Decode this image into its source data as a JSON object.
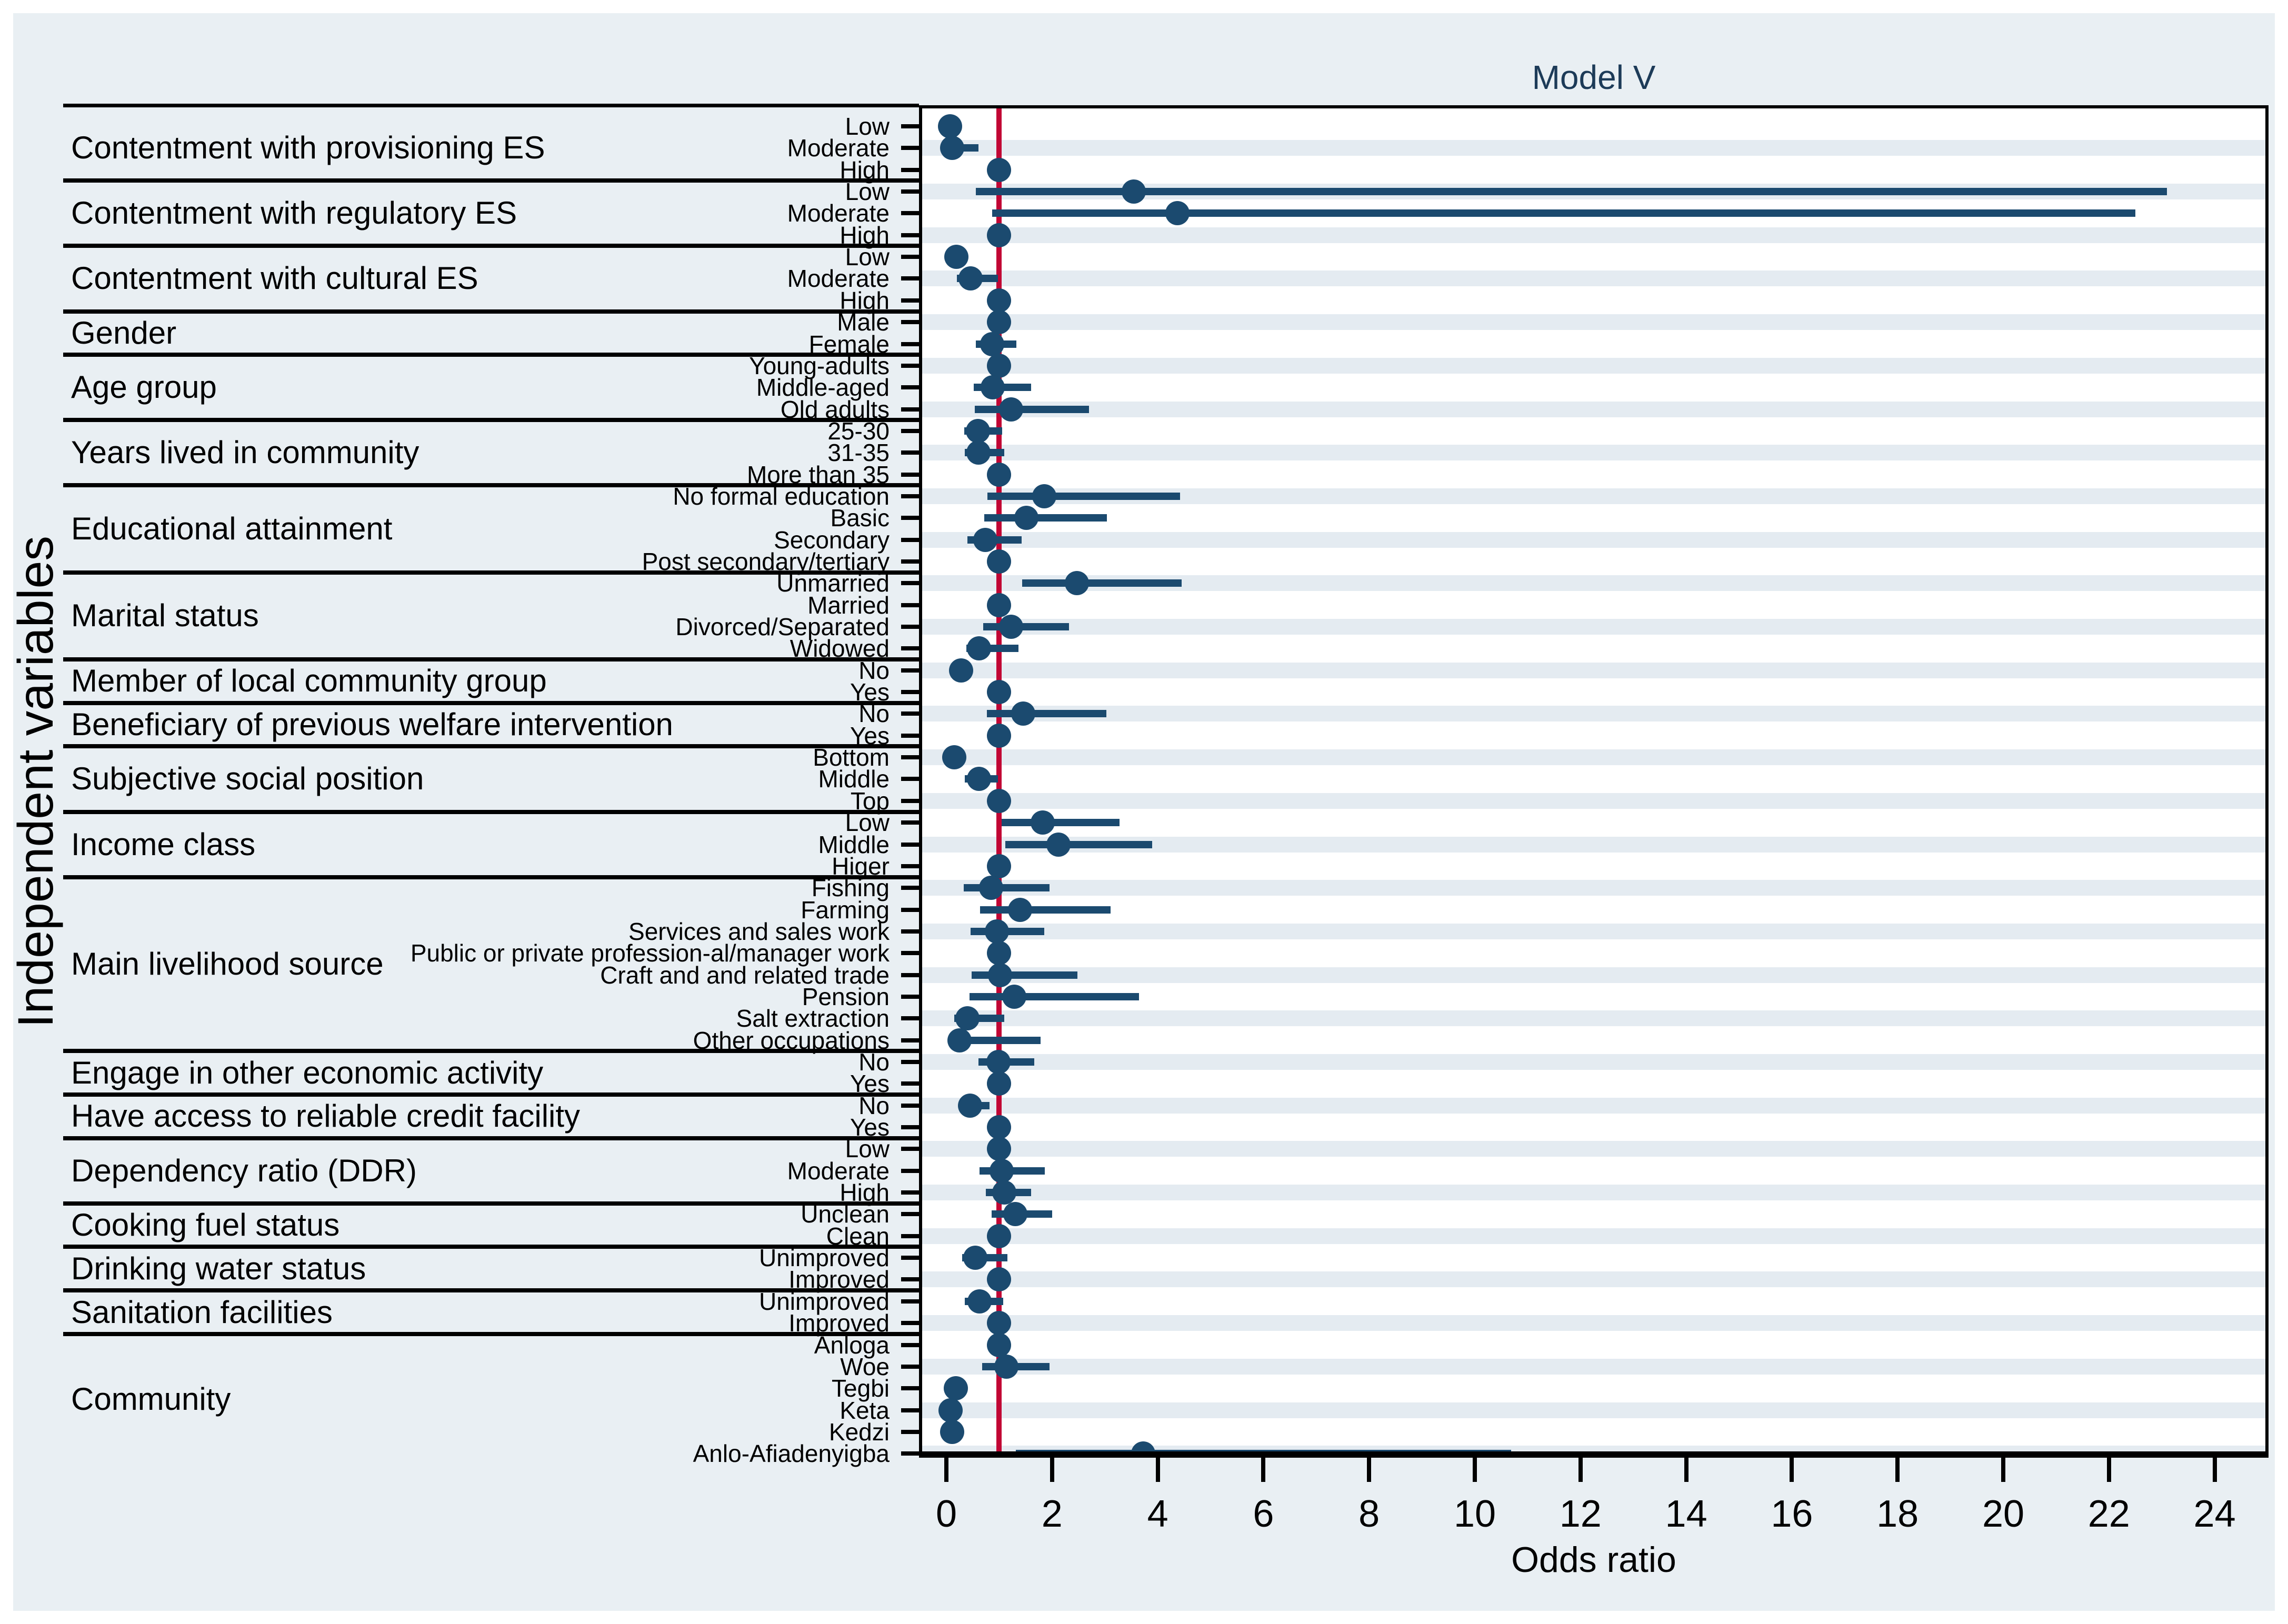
{
  "chart_data": {
    "type": "scatter",
    "subtype": "forest-plot-odds-ratios",
    "title": "Model V",
    "xlabel": "Odds ratio",
    "ylabel": "Independent variables",
    "xlim": [
      0,
      24
    ],
    "xticks": [
      0,
      2,
      4,
      6,
      8,
      10,
      12,
      14,
      16,
      18,
      20,
      22,
      24
    ],
    "reference_line_x": 1,
    "grid": "alternating-horizontal-bands",
    "colors": {
      "marker": "#1b4a6f",
      "reference_line": "#c10534",
      "background": "#e9eff3",
      "band": "#e4ebf1",
      "title": "#1d3b58"
    },
    "groups": [
      {
        "label": "Contentment with provisioning ES",
        "items": [
          {
            "label": "Low",
            "or": 0.07,
            "lo": null,
            "hi": null
          },
          {
            "label": "Moderate",
            "or": 0.11,
            "lo": 0.02,
            "hi": 0.61
          },
          {
            "label": "High",
            "or": 1.0,
            "lo": null,
            "hi": null
          }
        ]
      },
      {
        "label": "Contentment with regulatory ES",
        "items": [
          {
            "label": "Low",
            "or": 3.55,
            "lo": 0.56,
            "hi": 23.1
          },
          {
            "label": "Moderate",
            "or": 4.37,
            "lo": 0.87,
            "hi": 22.5
          },
          {
            "label": "High",
            "or": 1.0,
            "lo": null,
            "hi": null
          }
        ]
      },
      {
        "label": "Contentment with cultural ES",
        "items": [
          {
            "label": "Low",
            "or": 0.19,
            "lo": null,
            "hi": null
          },
          {
            "label": "Moderate",
            "or": 0.46,
            "lo": 0.2,
            "hi": 0.98
          },
          {
            "label": "High",
            "or": 1.0,
            "lo": null,
            "hi": null
          }
        ]
      },
      {
        "label": "Gender",
        "items": [
          {
            "label": "Male",
            "or": 1.0,
            "lo": null,
            "hi": null
          },
          {
            "label": "Female",
            "or": 0.87,
            "lo": 0.56,
            "hi": 1.33
          }
        ]
      },
      {
        "label": "Age group",
        "items": [
          {
            "label": "Young-adults",
            "or": 1.0,
            "lo": null,
            "hi": null
          },
          {
            "label": "Middle-aged",
            "or": 0.88,
            "lo": 0.52,
            "hi": 1.6
          },
          {
            "label": "Old adults",
            "or": 1.22,
            "lo": 0.54,
            "hi": 2.7
          }
        ]
      },
      {
        "label": "Years lived in community",
        "items": [
          {
            "label": "25-30",
            "or": 0.6,
            "lo": 0.34,
            "hi": 1.06
          },
          {
            "label": "31-35",
            "or": 0.61,
            "lo": 0.35,
            "hi": 1.1
          },
          {
            "label": "More than 35",
            "or": 1.0,
            "lo": null,
            "hi": null
          }
        ]
      },
      {
        "label": "Educational attainment",
        "items": [
          {
            "label": "No formal education",
            "or": 1.85,
            "lo": 0.78,
            "hi": 4.42
          },
          {
            "label": "Basic",
            "or": 1.51,
            "lo": 0.72,
            "hi": 3.04
          },
          {
            "label": "Secondary",
            "or": 0.74,
            "lo": 0.4,
            "hi": 1.42
          },
          {
            "label": "Post secondary/tertiary",
            "or": 1.0,
            "lo": null,
            "hi": null
          }
        ]
      },
      {
        "label": "Marital status",
        "items": [
          {
            "label": "Unmarried",
            "or": 2.47,
            "lo": 1.43,
            "hi": 4.45
          },
          {
            "label": "Married",
            "or": 1.0,
            "lo": null,
            "hi": null
          },
          {
            "label": "Divorced/Separated",
            "or": 1.22,
            "lo": 0.7,
            "hi": 2.32
          },
          {
            "label": "Widowed",
            "or": 0.62,
            "lo": 0.38,
            "hi": 1.36
          }
        ]
      },
      {
        "label": "Member of local community group",
        "items": [
          {
            "label": "No",
            "or": 0.28,
            "lo": null,
            "hi": null
          },
          {
            "label": "Yes",
            "or": 1.0,
            "lo": null,
            "hi": null
          }
        ]
      },
      {
        "label": "Beneficiary of previous welfare intervention",
        "items": [
          {
            "label": "No",
            "or": 1.45,
            "lo": 0.77,
            "hi": 3.03
          },
          {
            "label": "Yes",
            "or": 1.0,
            "lo": null,
            "hi": null
          }
        ]
      },
      {
        "label": "Subjective social position",
        "items": [
          {
            "label": "Bottom",
            "or": 0.15,
            "lo": null,
            "hi": null
          },
          {
            "label": "Middle",
            "or": 0.62,
            "lo": 0.35,
            "hi": 0.98
          },
          {
            "label": "Top",
            "or": 1.0,
            "lo": null,
            "hi": null
          }
        ]
      },
      {
        "label": "Income class",
        "items": [
          {
            "label": "Low",
            "or": 1.82,
            "lo": 1.05,
            "hi": 3.28
          },
          {
            "label": "Middle",
            "or": 2.12,
            "lo": 1.12,
            "hi": 3.9
          },
          {
            "label": "Higer",
            "or": 1.0,
            "lo": null,
            "hi": null
          }
        ]
      },
      {
        "label": "Main livelihood source",
        "items": [
          {
            "label": "Fishing",
            "or": 0.85,
            "lo": 0.33,
            "hi": 1.95
          },
          {
            "label": "Farming",
            "or": 1.39,
            "lo": 0.64,
            "hi": 3.11
          },
          {
            "label": "Services and sales work",
            "or": 0.96,
            "lo": 0.46,
            "hi": 1.85
          },
          {
            "label": "Public or private profession-al/manager work",
            "or": 1.0,
            "lo": null,
            "hi": null
          },
          {
            "label": "Craft and and related trade",
            "or": 1.02,
            "lo": 0.48,
            "hi": 2.48
          },
          {
            "label": "Pension",
            "or": 1.28,
            "lo": 0.44,
            "hi": 3.65
          },
          {
            "label": "Salt extraction",
            "or": 0.4,
            "lo": 0.15,
            "hi": 1.1
          },
          {
            "label": "Other occupations",
            "or": 0.25,
            "lo": 0.06,
            "hi": 1.78
          }
        ]
      },
      {
        "label": "Engage in other economic activity",
        "items": [
          {
            "label": "No",
            "or": 0.99,
            "lo": 0.61,
            "hi": 1.66
          },
          {
            "label": "Yes",
            "or": 1.0,
            "lo": null,
            "hi": null
          }
        ]
      },
      {
        "label": "Have access to reliable credit facility",
        "items": [
          {
            "label": "No",
            "or": 0.45,
            "lo": 0.25,
            "hi": 0.82
          },
          {
            "label": "Yes",
            "or": 1.0,
            "lo": null,
            "hi": null
          }
        ]
      },
      {
        "label": "Dependency ratio (DDR)",
        "items": [
          {
            "label": "Low",
            "or": 1.0,
            "lo": null,
            "hi": null
          },
          {
            "label": "Moderate",
            "or": 1.05,
            "lo": 0.63,
            "hi": 1.86
          },
          {
            "label": "High",
            "or": 1.1,
            "lo": 0.75,
            "hi": 1.6
          }
        ]
      },
      {
        "label": "Cooking fuel status",
        "items": [
          {
            "label": "Unclean",
            "or": 1.3,
            "lo": 0.86,
            "hi": 2.0
          },
          {
            "label": "Clean",
            "or": 1.0,
            "lo": null,
            "hi": null
          }
        ]
      },
      {
        "label": "Drinking water status",
        "items": [
          {
            "label": "Unimproved",
            "or": 0.55,
            "lo": 0.3,
            "hi": 1.16
          },
          {
            "label": "Improved",
            "or": 1.0,
            "lo": null,
            "hi": null
          }
        ]
      },
      {
        "label": "Sanitation facilities",
        "items": [
          {
            "label": "Unimproved",
            "or": 0.63,
            "lo": 0.35,
            "hi": 1.08
          },
          {
            "label": "Improved",
            "or": 1.0,
            "lo": null,
            "hi": null
          }
        ]
      },
      {
        "label": "Community",
        "items": [
          {
            "label": "Anloga",
            "or": 1.0,
            "lo": null,
            "hi": null
          },
          {
            "label": "Woe",
            "or": 1.13,
            "lo": 0.68,
            "hi": 1.95
          },
          {
            "label": "Tegbi",
            "or": 0.18,
            "lo": null,
            "hi": null
          },
          {
            "label": "Keta",
            "or": 0.08,
            "lo": null,
            "hi": null
          },
          {
            "label": "Kedzi",
            "or": 0.11,
            "lo": null,
            "hi": null
          },
          {
            "label": "Anlo-Afiadenyigba",
            "or": 3.72,
            "lo": 1.31,
            "hi": 10.69
          }
        ]
      }
    ]
  }
}
